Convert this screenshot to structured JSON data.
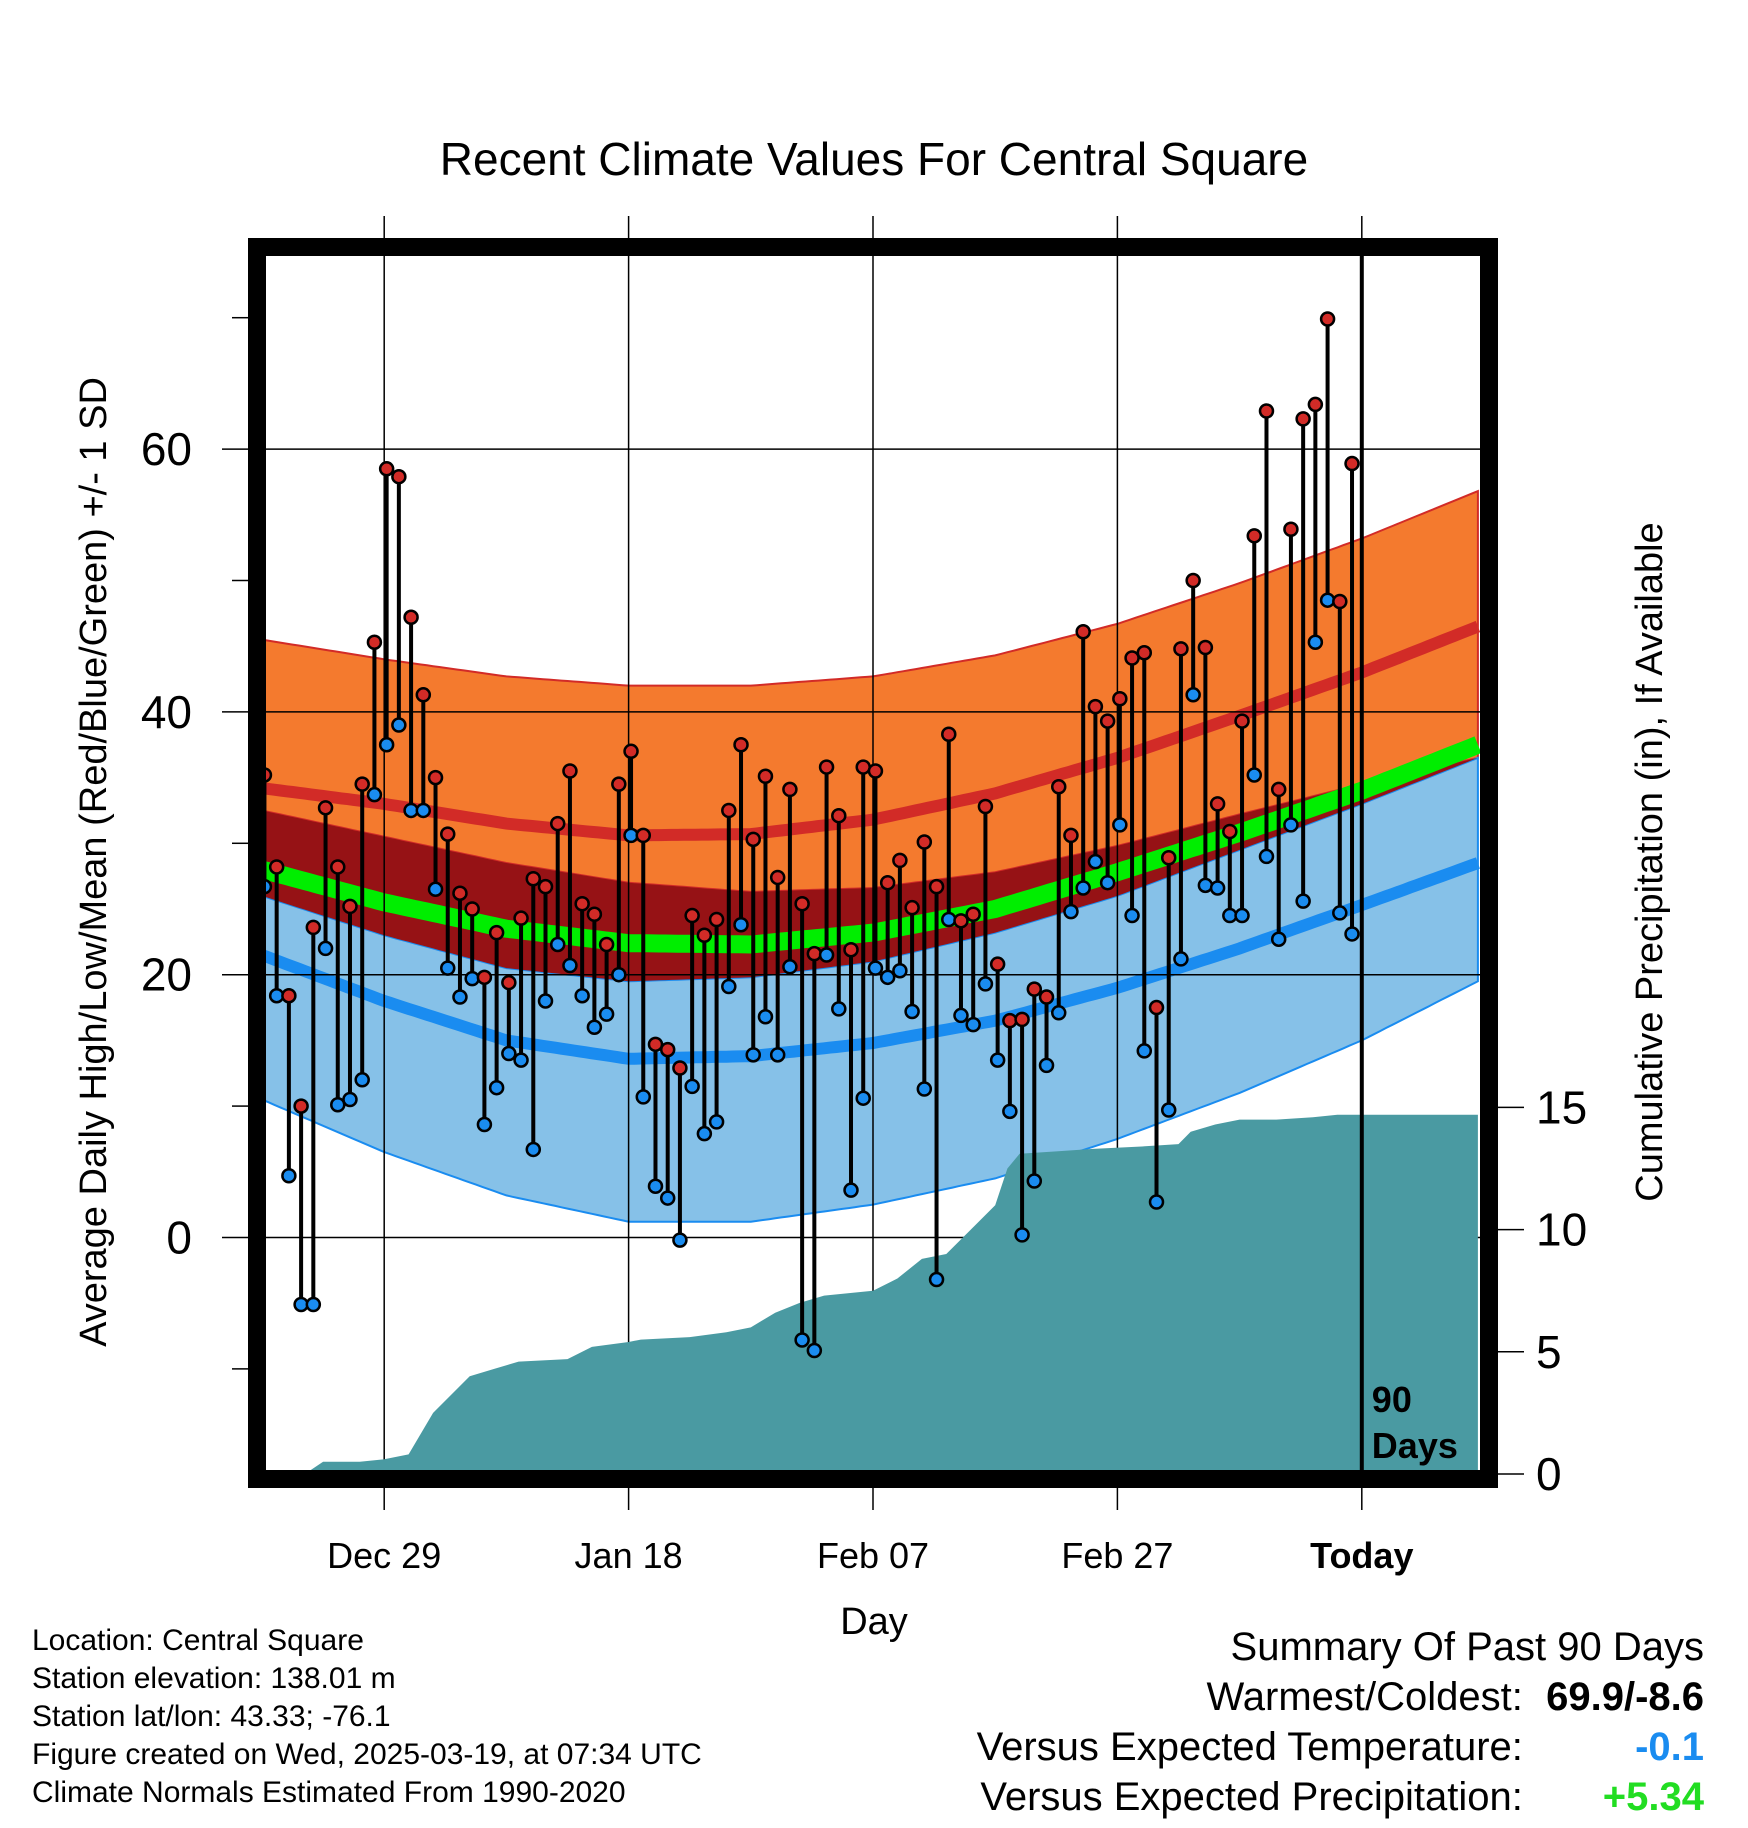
{
  "chart_data": {
    "type": "line",
    "title": "Recent Climate Values For Central Square",
    "xlabel": "Day",
    "ylabel": "Average Daily High/Low/Mean (Red/Blue/Green) +/- 1 SD",
    "y2label": "Cumulative Precipitation (in), If Available",
    "xlim": [
      0,
      100
    ],
    "ylim": [
      -18,
      75
    ],
    "y2lim": [
      0,
      50
    ],
    "y_ticks": [
      0,
      20,
      40,
      60
    ],
    "y2_ticks": [
      0,
      5,
      10,
      15
    ],
    "x_ticks": [
      {
        "day": 10,
        "label": "Dec 29"
      },
      {
        "day": 30,
        "label": "Jan 18"
      },
      {
        "day": 50,
        "label": "Feb 07"
      },
      {
        "day": 70,
        "label": "Feb 27"
      },
      {
        "day": 90,
        "label": "Today"
      }
    ],
    "today_marker": {
      "day": 90,
      "label_line1": "90",
      "label_line2": "Days"
    },
    "normals": {
      "days": [
        0,
        10,
        20,
        30,
        40,
        50,
        60,
        70,
        80,
        90,
        99.5
      ],
      "high_mean": [
        34.2,
        33.0,
        31.5,
        30.6,
        30.7,
        31.8,
        33.8,
        36.5,
        39.7,
        43.0,
        46.5
      ],
      "high_sd_upper": [
        45.5,
        44.0,
        42.7,
        42.0,
        42.0,
        42.7,
        44.3,
        46.7,
        49.8,
        53.2,
        56.8
      ],
      "high_sd_lower": [
        32.5,
        30.5,
        28.5,
        27.0,
        26.3,
        26.6,
        27.8,
        29.8,
        32.2,
        34.5,
        36.5
      ],
      "mean_normal": [
        28.0,
        25.5,
        23.5,
        22.4,
        22.3,
        23.2,
        25.0,
        27.8,
        30.8,
        34.0,
        37.5
      ],
      "low_mean": [
        21.5,
        18.0,
        15.0,
        13.6,
        13.8,
        14.8,
        16.5,
        19.0,
        22.0,
        25.3,
        28.5
      ],
      "low_sd_upper": [
        26.0,
        23.0,
        20.5,
        19.5,
        19.8,
        21.0,
        23.2,
        26.0,
        29.5,
        33.0,
        36.5
      ],
      "low_sd_lower": [
        10.5,
        6.5,
        3.2,
        1.2,
        1.2,
        2.5,
        4.5,
        7.5,
        11.0,
        15.0,
        19.5
      ]
    },
    "daily_high": [
      35.2,
      28.2,
      18.4,
      10.0,
      23.6,
      32.7,
      28.2,
      25.2,
      34.5,
      45.3,
      58.5,
      57.9,
      47.2,
      41.3,
      35.0,
      30.7,
      26.2,
      25.0,
      19.8,
      23.2,
      19.4,
      24.3,
      27.3,
      26.7,
      31.5,
      35.5,
      25.4,
      24.6,
      22.3,
      34.5,
      37.0,
      30.6,
      14.7,
      14.3,
      12.9,
      24.5,
      23.0,
      24.2,
      32.5,
      37.5,
      30.3,
      35.1,
      27.4,
      34.1,
      25.4,
      21.6,
      35.8,
      32.1,
      21.9,
      35.8,
      35.5,
      27.0,
      28.7,
      25.1,
      30.1,
      26.7,
      38.3,
      24.1,
      24.6,
      32.8,
      20.8,
      16.5,
      16.6,
      18.9,
      18.3,
      34.3,
      30.6,
      46.1,
      40.4,
      39.3,
      41.0,
      44.1,
      44.5,
      17.5,
      28.9,
      44.8,
      50.0,
      44.9,
      33.0,
      30.9,
      39.3,
      53.4,
      62.9,
      34.1,
      53.9,
      62.3,
      63.4,
      69.9,
      48.4,
      58.9
    ],
    "daily_low": [
      26.7,
      18.4,
      4.7,
      -5.1,
      -5.1,
      22.0,
      10.1,
      10.5,
      12.0,
      33.7,
      37.5,
      39.0,
      32.5,
      32.5,
      26.5,
      20.5,
      18.3,
      19.7,
      8.6,
      11.4,
      14.0,
      13.5,
      6.7,
      18.0,
      22.3,
      20.7,
      18.4,
      16.0,
      17.0,
      20.0,
      30.6,
      10.7,
      3.9,
      3.0,
      -0.2,
      11.5,
      7.9,
      8.8,
      19.1,
      23.8,
      13.9,
      16.8,
      13.9,
      20.6,
      -7.8,
      -8.6,
      21.5,
      17.4,
      3.6,
      10.6,
      20.5,
      19.8,
      20.3,
      17.2,
      11.3,
      -3.2,
      24.2,
      16.9,
      16.2,
      19.3,
      13.5,
      9.6,
      0.2,
      4.3,
      13.1,
      17.1,
      24.8,
      26.6,
      28.6,
      27.0,
      31.4,
      24.5,
      14.2,
      2.7,
      9.7,
      21.2,
      41.3,
      26.8,
      26.6,
      24.5,
      24.5,
      35.2,
      29.0,
      22.7,
      31.4,
      25.6,
      45.3,
      48.5,
      24.7,
      23.1
    ],
    "cumulative_precip": [
      {
        "day": 0,
        "inches": 0.0
      },
      {
        "day": 3.5,
        "inches": 0.0
      },
      {
        "day": 5,
        "inches": 0.5
      },
      {
        "day": 8,
        "inches": 0.5
      },
      {
        "day": 10,
        "inches": 0.6
      },
      {
        "day": 12,
        "inches": 0.8
      },
      {
        "day": 14,
        "inches": 2.5
      },
      {
        "day": 17,
        "inches": 4.0
      },
      {
        "day": 19,
        "inches": 4.3
      },
      {
        "day": 21,
        "inches": 4.6
      },
      {
        "day": 25,
        "inches": 4.7
      },
      {
        "day": 27,
        "inches": 5.2
      },
      {
        "day": 30,
        "inches": 5.4
      },
      {
        "day": 31,
        "inches": 5.5
      },
      {
        "day": 35,
        "inches": 5.6
      },
      {
        "day": 38,
        "inches": 5.8
      },
      {
        "day": 40,
        "inches": 6.0
      },
      {
        "day": 42,
        "inches": 6.6
      },
      {
        "day": 44,
        "inches": 7.0
      },
      {
        "day": 46,
        "inches": 7.3
      },
      {
        "day": 50,
        "inches": 7.5
      },
      {
        "day": 52,
        "inches": 8.0
      },
      {
        "day": 54,
        "inches": 8.8
      },
      {
        "day": 56,
        "inches": 9.0
      },
      {
        "day": 58,
        "inches": 10.0
      },
      {
        "day": 60,
        "inches": 11.0
      },
      {
        "day": 61,
        "inches": 12.5
      },
      {
        "day": 62,
        "inches": 13.1
      },
      {
        "day": 65,
        "inches": 13.2
      },
      {
        "day": 68,
        "inches": 13.3
      },
      {
        "day": 72,
        "inches": 13.4
      },
      {
        "day": 75,
        "inches": 13.5
      },
      {
        "day": 76,
        "inches": 14.0
      },
      {
        "day": 78,
        "inches": 14.3
      },
      {
        "day": 80,
        "inches": 14.5
      },
      {
        "day": 83,
        "inches": 14.5
      },
      {
        "day": 86,
        "inches": 14.6
      },
      {
        "day": 88,
        "inches": 14.7
      },
      {
        "day": 99.5,
        "inches": 14.7
      }
    ],
    "colors": {
      "high_band": "#f47a2e",
      "high_mean_line": "#d22b27",
      "overlap_band": "#961215",
      "low_band": "#86c1e8",
      "low_mean_line": "#1a8cf0",
      "mean_normal_line": "#00ee00",
      "precip_fill": "#4a9aa2",
      "high_marker": "#d22b27",
      "low_marker": "#1a8cf0"
    }
  },
  "info": {
    "location": "Location: Central Square",
    "elevation": "Station elevation: 138.01 m",
    "latlon": "Station lat/lon: 43.33; -76.1",
    "created": "Figure created on Wed, 2025-03-19, at 07:34 UTC",
    "normals": "Climate Normals Estimated From 1990-2020"
  },
  "summary": {
    "heading": "Summary Of Past 90 Days",
    "warmest_coldest_label": "Warmest/Coldest:",
    "warmest_coldest_value": "69.9/-8.6",
    "temp_label": "Versus Expected Temperature:",
    "temp_value": "-0.1",
    "temp_color": "#1a8cf0",
    "precip_label": "Versus Expected Precipitation:",
    "precip_value": "+5.34",
    "precip_color": "#22dd22"
  }
}
